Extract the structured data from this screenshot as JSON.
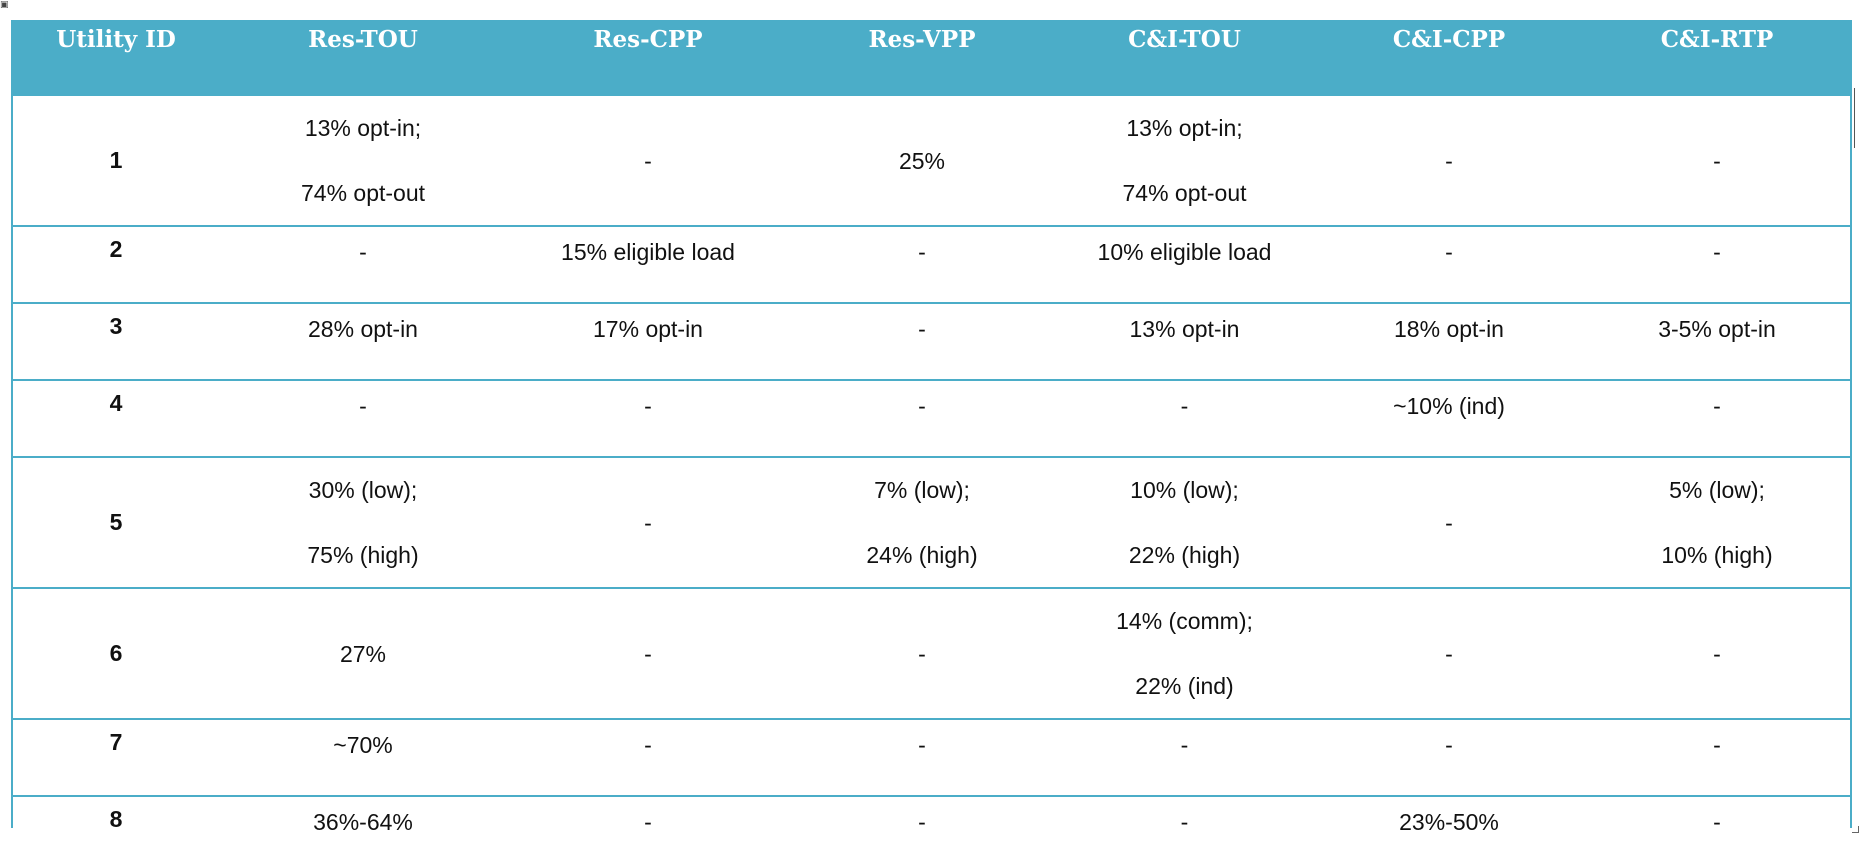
{
  "table": {
    "headers": [
      "Utility ID",
      "Res-TOU",
      "Res-CPP",
      "Res-VPP",
      "C&I-TOU",
      "C&I-CPP",
      "C&I-RTP"
    ],
    "rows": [
      {
        "id": "1",
        "cells": [
          [
            "13% opt-in;",
            "74% opt-out"
          ],
          [
            "-"
          ],
          [
            "25%"
          ],
          [
            "13% opt-in;",
            "74% opt-out"
          ],
          [
            "-"
          ],
          [
            "-"
          ]
        ]
      },
      {
        "id": "2",
        "cells": [
          [
            "-"
          ],
          [
            "15% eligible load"
          ],
          [
            "-"
          ],
          [
            "10% eligible load"
          ],
          [
            "-"
          ],
          [
            "-"
          ]
        ]
      },
      {
        "id": "3",
        "cells": [
          [
            "28% opt-in"
          ],
          [
            "17% opt-in"
          ],
          [
            "-"
          ],
          [
            "13% opt-in"
          ],
          [
            "18% opt-in"
          ],
          [
            "3-5% opt-in"
          ]
        ]
      },
      {
        "id": "4",
        "cells": [
          [
            "-"
          ],
          [
            "-"
          ],
          [
            "-"
          ],
          [
            "-"
          ],
          [
            "~10% (ind)"
          ],
          [
            "-"
          ]
        ]
      },
      {
        "id": "5",
        "cells": [
          [
            "30% (low);",
            "75% (high)"
          ],
          [
            "-"
          ],
          [
            "7% (low);",
            "24% (high)"
          ],
          [
            "10% (low);",
            "22% (high)"
          ],
          [
            "-"
          ],
          [
            "5% (low);",
            "10% (high)"
          ]
        ]
      },
      {
        "id": "6",
        "cells": [
          [
            "27%"
          ],
          [
            "-"
          ],
          [
            "-"
          ],
          [
            "14% (comm);",
            "22% (ind)"
          ],
          [
            "-"
          ],
          [
            "-"
          ]
        ]
      },
      {
        "id": "7",
        "cells": [
          [
            "~70%"
          ],
          [
            "-"
          ],
          [
            "-"
          ],
          [
            "-"
          ],
          [
            "-"
          ],
          [
            "-"
          ]
        ]
      },
      {
        "id": "8",
        "cells": [
          [
            "36%-64%"
          ],
          [
            "-"
          ],
          [
            "-"
          ],
          [
            "-"
          ],
          [
            "23%-50%"
          ],
          [
            "-"
          ]
        ]
      }
    ]
  },
  "colors": {
    "header_bg": "#4badc8",
    "header_text": "#ffffff",
    "rule": "#4badc8"
  },
  "icons": {
    "table_anchor": "move-handle-icon"
  }
}
